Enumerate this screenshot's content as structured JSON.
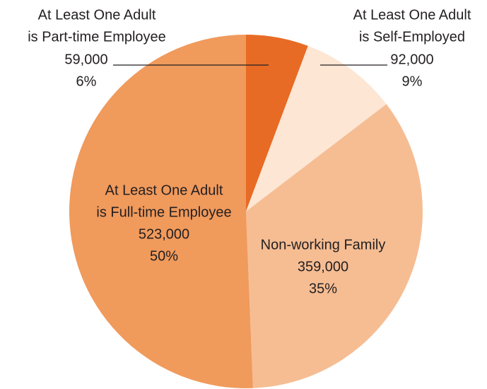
{
  "chart_data": {
    "type": "pie",
    "categories": [
      [
        "At Least One Adult",
        "is Part-time Employee"
      ],
      [
        "At Least One Adult",
        "is Self-Employed"
      ],
      [
        "Non-working Family"
      ],
      [
        "At Least One Adult",
        "is Full-time Employee"
      ]
    ],
    "values": [
      59000,
      92000,
      359000,
      523000
    ],
    "value_labels": [
      "59,000",
      "92,000",
      "359,000",
      "523,000"
    ],
    "percents": [
      6,
      9,
      35,
      50
    ],
    "percent_labels": [
      "6%",
      "9%",
      "35%",
      "50%"
    ],
    "colors": [
      "#e86b25",
      "#fde6d3",
      "#f6bd93",
      "#f09a5c"
    ]
  }
}
